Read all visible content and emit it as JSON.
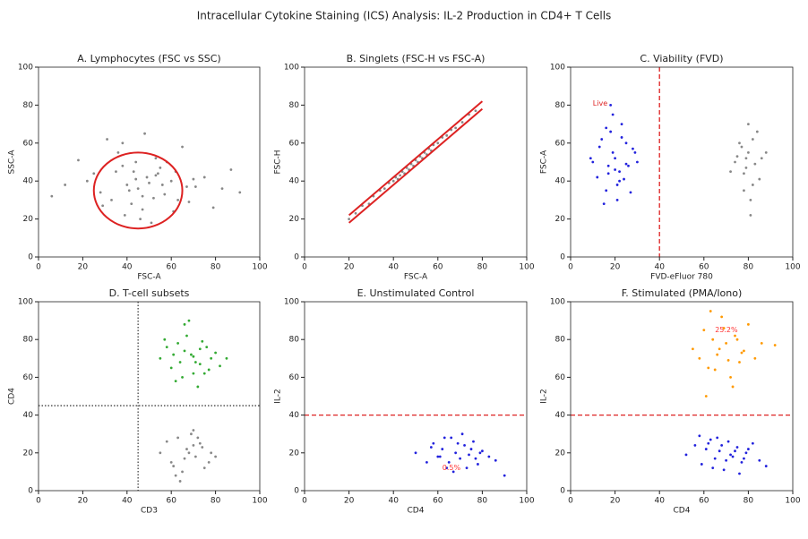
{
  "title": "Intracellular Cytokine Staining (ICS) Analysis: IL-2 Production in CD4+ T Cells",
  "chart_data": [
    {
      "type": "scatter",
      "title": "A. Lymphocytes (FSC vs SSC)",
      "xlabel": "FSC-A",
      "ylabel": "SSC-A",
      "xlim": [
        0,
        100
      ],
      "ylim": [
        0,
        100
      ],
      "xticks": [
        0,
        20,
        40,
        60,
        80,
        100
      ],
      "yticks": [
        0,
        20,
        40,
        60,
        80,
        100
      ],
      "series": [
        {
          "color": "#888888",
          "x": [
            12,
            25,
            33,
            38,
            41,
            44,
            47,
            50,
            53,
            57,
            62,
            68,
            75,
            83,
            91,
            18,
            29,
            36,
            40,
            43,
            46,
            49,
            52,
            55,
            60,
            65,
            71,
            79,
            87,
            6,
            22,
            31,
            39,
            45,
            48,
            51,
            54,
            58,
            63,
            70,
            28,
            35,
            42,
            56,
            61,
            38,
            47,
            53,
            44,
            67
          ],
          "y": [
            38,
            44,
            30,
            48,
            35,
            41,
            25,
            39,
            52,
            33,
            45,
            29,
            42,
            36,
            34,
            51,
            27,
            55,
            38,
            45,
            20,
            42,
            31,
            47,
            40,
            58,
            37,
            26,
            46,
            32,
            40,
            62,
            22,
            36,
            65,
            18,
            44,
            50,
            30,
            41,
            34,
            45,
            28,
            38,
            24,
            60,
            32,
            43,
            50,
            37
          ]
        }
      ],
      "ellipses": [
        {
          "cx": 45,
          "cy": 35,
          "rx": 20,
          "ry": 20,
          "color": "#dd2222"
        }
      ]
    },
    {
      "type": "scatter",
      "title": "B. Singlets (FSC-H vs FSC-A)",
      "xlabel": "FSC-A",
      "ylabel": "FSC-H",
      "xlim": [
        0,
        100
      ],
      "ylim": [
        0,
        100
      ],
      "xticks": [
        0,
        20,
        40,
        60,
        80,
        100
      ],
      "yticks": [
        0,
        20,
        40,
        60,
        80,
        100
      ],
      "series": [
        {
          "color": "#888888",
          "x": [
            20,
            23,
            26,
            29,
            31,
            34,
            36,
            38,
            40,
            41,
            43,
            44,
            45,
            46,
            47,
            48,
            49,
            50,
            51,
            52,
            53,
            54,
            55,
            56,
            57,
            58,
            60,
            62,
            64,
            66,
            68,
            71,
            74,
            77,
            42
          ],
          "y": [
            20,
            23,
            27,
            28,
            32,
            35,
            36,
            39,
            40,
            42,
            43,
            45,
            44,
            47,
            46,
            49,
            48,
            51,
            50,
            53,
            52,
            55,
            54,
            57,
            56,
            59,
            60,
            63,
            64,
            67,
            68,
            71,
            75,
            77,
            41
          ]
        }
      ],
      "lines": [
        {
          "x": [
            20,
            80
          ],
          "y": [
            22,
            82
          ],
          "color": "#dd2222"
        },
        {
          "x": [
            20,
            80
          ],
          "y": [
            18,
            78
          ],
          "color": "#dd2222"
        }
      ]
    },
    {
      "type": "scatter",
      "title": "C. Viability (FVD)",
      "xlabel": "FVD-eFluor 780",
      "ylabel": "FSC-A",
      "xlim": [
        0,
        100
      ],
      "ylim": [
        0,
        100
      ],
      "xticks": [
        0,
        20,
        40,
        60,
        80,
        100
      ],
      "yticks": [
        0,
        20,
        40,
        60,
        80,
        100
      ],
      "series": [
        {
          "color": "#2222dd",
          "x": [
            10,
            14,
            17,
            19,
            21,
            23,
            26,
            28,
            12,
            16,
            18,
            20,
            22,
            25,
            30,
            15,
            19,
            24,
            27,
            13,
            17,
            21,
            23,
            9,
            18,
            20,
            29,
            16,
            22,
            25
          ],
          "y": [
            50,
            62,
            44,
            55,
            38,
            70,
            48,
            57,
            42,
            35,
            66,
            52,
            45,
            60,
            50,
            28,
            75,
            41,
            34,
            58,
            48,
            30,
            63,
            52,
            80,
            46,
            55,
            68,
            40,
            49
          ]
        },
        {
          "color": "#888888",
          "x": [
            74,
            76,
            78,
            80,
            82,
            84,
            86,
            79,
            81,
            77,
            83,
            85,
            75,
            80,
            78,
            82,
            88,
            72,
            81,
            79
          ],
          "y": [
            50,
            60,
            44,
            55,
            38,
            66,
            52,
            47,
            30,
            58,
            49,
            41,
            53,
            70,
            35,
            62,
            55,
            45,
            22,
            52
          ]
        }
      ],
      "vlines": [
        {
          "value": 40,
          "color": "#dd2222",
          "style": "dashed"
        }
      ],
      "annotations": [
        {
          "text": "Live",
          "x": 10,
          "y": 81,
          "color": "#dd2222"
        }
      ]
    },
    {
      "type": "scatter",
      "title": "D. T-cell subsets",
      "xlabel": "CD3",
      "ylabel": "CD4",
      "xlim": [
        0,
        100
      ],
      "ylim": [
        0,
        100
      ],
      "xticks": [
        0,
        20,
        40,
        60,
        80,
        100
      ],
      "yticks": [
        0,
        20,
        40,
        60,
        80,
        100
      ],
      "series": [
        {
          "color": "#33aa33",
          "x": [
            55,
            60,
            63,
            65,
            67,
            69,
            71,
            73,
            75,
            78,
            82,
            58,
            62,
            66,
            70,
            74,
            77,
            80,
            64,
            68,
            72,
            76,
            61,
            70,
            85,
            57,
            66,
            73
          ],
          "y": [
            70,
            65,
            78,
            60,
            82,
            72,
            68,
            75,
            62,
            70,
            66,
            76,
            58,
            88,
            71,
            79,
            64,
            73,
            68,
            90,
            55,
            76,
            72,
            62,
            70,
            80,
            74,
            67
          ]
        },
        {
          "color": "#888888",
          "x": [
            55,
            60,
            63,
            65,
            67,
            69,
            71,
            73,
            75,
            78,
            58,
            62,
            66,
            70,
            74,
            77,
            64,
            68,
            72,
            61,
            70,
            80
          ],
          "y": [
            20,
            15,
            28,
            10,
            22,
            30,
            18,
            25,
            12,
            20,
            26,
            8,
            17,
            32,
            23,
            15,
            5,
            20,
            28,
            13,
            24,
            18
          ]
        }
      ],
      "vlines": [
        {
          "value": 45,
          "color": "#444444",
          "style": "dotted"
        }
      ],
      "hlines": [
        {
          "value": 45,
          "color": "#444444",
          "style": "dotted"
        }
      ]
    },
    {
      "type": "scatter",
      "title": "E. Unstimulated Control",
      "xlabel": "CD4",
      "ylabel": "IL-2",
      "xlim": [
        0,
        100
      ],
      "ylim": [
        0,
        100
      ],
      "xticks": [
        0,
        20,
        40,
        60,
        80,
        100
      ],
      "yticks": [
        0,
        20,
        40,
        60,
        80,
        100
      ],
      "series": [
        {
          "color": "#2222dd",
          "x": [
            50,
            55,
            58,
            60,
            62,
            64,
            66,
            68,
            70,
            72,
            74,
            76,
            78,
            80,
            83,
            86,
            57,
            63,
            67,
            71,
            75,
            79,
            65,
            69,
            73,
            61,
            77,
            90
          ],
          "y": [
            20,
            15,
            25,
            18,
            22,
            12,
            28,
            20,
            17,
            24,
            19,
            26,
            14,
            21,
            18,
            16,
            23,
            28,
            10,
            30,
            22,
            20,
            15,
            25,
            12,
            18,
            17,
            8
          ]
        }
      ],
      "hlines": [
        {
          "value": 40,
          "color": "#dd2222",
          "style": "dashed"
        }
      ],
      "annotations": [
        {
          "text": "0.5%",
          "x": 62,
          "y": 12,
          "color": "#ff3333"
        }
      ]
    },
    {
      "type": "scatter",
      "title": "F. Stimulated (PMA/Iono)",
      "xlabel": "CD4",
      "ylabel": "IL-2",
      "xlim": [
        0,
        100
      ],
      "ylim": [
        0,
        100
      ],
      "xticks": [
        0,
        20,
        40,
        60,
        80,
        100
      ],
      "yticks": [
        0,
        20,
        40,
        60,
        80,
        100
      ],
      "series": [
        {
          "color": "#ff9900",
          "x": [
            55,
            58,
            60,
            62,
            64,
            66,
            68,
            70,
            72,
            74,
            76,
            78,
            80,
            83,
            86,
            92,
            61,
            65,
            69,
            73,
            77,
            63,
            71,
            75,
            67
          ],
          "y": [
            75,
            70,
            85,
            65,
            80,
            72,
            92,
            78,
            60,
            82,
            68,
            74,
            88,
            70,
            78,
            77,
            50,
            64,
            86,
            55,
            73,
            95,
            69,
            80,
            75
          ]
        },
        {
          "color": "#2222dd",
          "x": [
            52,
            56,
            59,
            61,
            63,
            65,
            67,
            69,
            71,
            73,
            75,
            77,
            79,
            82,
            85,
            88,
            58,
            64,
            68,
            72,
            76,
            80,
            66,
            70,
            74,
            62,
            78
          ],
          "y": [
            19,
            24,
            14,
            22,
            27,
            17,
            21,
            11,
            26,
            18,
            23,
            15,
            20,
            25,
            16,
            13,
            29,
            12,
            24,
            19,
            9,
            22,
            28,
            16,
            21,
            25,
            17
          ]
        }
      ],
      "hlines": [
        {
          "value": 40,
          "color": "#dd2222",
          "style": "dashed"
        }
      ],
      "annotations": [
        {
          "text": "25.2%",
          "x": 65,
          "y": 85,
          "color": "#ff3333"
        }
      ]
    }
  ]
}
